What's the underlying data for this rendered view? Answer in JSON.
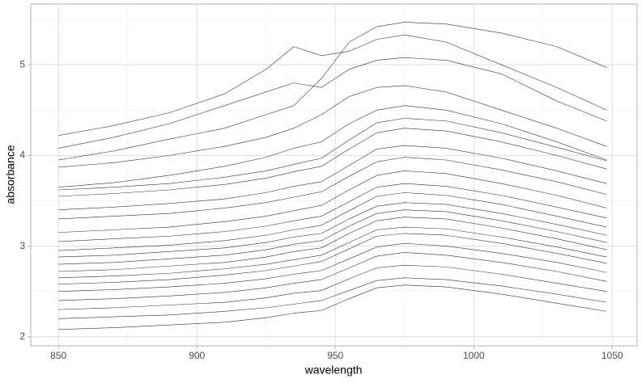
{
  "chart_data": {
    "type": "line",
    "xlabel": "wavelength",
    "ylabel": "absorbance",
    "x": [
      850,
      870,
      890,
      910,
      925,
      935,
      945,
      955,
      965,
      975,
      990,
      1010,
      1030,
      1048
    ],
    "color": "#333333",
    "xlim": [
      840,
      1059
    ],
    "ylim": [
      1.9,
      5.67
    ],
    "xticks": [
      850,
      900,
      950,
      1000,
      1050
    ],
    "yticks": [
      2,
      3,
      4,
      5
    ],
    "xminorticks": [
      875,
      925,
      975,
      1025
    ],
    "yminorticks": [
      2.5,
      3.5,
      4.5,
      5.5
    ],
    "grid": true,
    "series": [
      {
        "values": [
          4.22,
          4.33,
          4.47,
          4.68,
          4.95,
          5.2,
          5.1,
          5.15,
          5.28,
          5.33,
          5.25,
          5.0,
          4.75,
          4.5
        ]
      },
      {
        "values": [
          4.08,
          4.2,
          4.35,
          4.55,
          4.7,
          4.8,
          4.75,
          4.95,
          5.05,
          5.08,
          5.05,
          4.9,
          4.6,
          4.38
        ]
      },
      {
        "values": [
          3.95,
          4.05,
          4.18,
          4.3,
          4.45,
          4.55,
          4.85,
          5.25,
          5.42,
          5.47,
          5.45,
          5.35,
          5.2,
          4.97
        ]
      },
      {
        "values": [
          3.87,
          3.92,
          4.0,
          4.1,
          4.2,
          4.3,
          4.45,
          4.65,
          4.75,
          4.77,
          4.7,
          4.5,
          4.3,
          4.1
        ]
      },
      {
        "values": [
          3.65,
          3.7,
          3.78,
          3.88,
          3.98,
          4.08,
          4.15,
          4.35,
          4.5,
          4.55,
          4.5,
          4.35,
          4.15,
          3.95
        ]
      },
      {
        "values": [
          3.62,
          3.65,
          3.69,
          3.76,
          3.83,
          3.9,
          3.97,
          4.17,
          4.36,
          4.41,
          4.38,
          4.25,
          4.09,
          3.94
        ]
      },
      {
        "values": [
          3.55,
          3.58,
          3.62,
          3.68,
          3.75,
          3.82,
          3.88,
          4.07,
          4.25,
          4.3,
          4.27,
          4.15,
          4.0,
          3.85
        ]
      },
      {
        "values": [
          3.4,
          3.43,
          3.47,
          3.52,
          3.59,
          3.66,
          3.71,
          3.89,
          4.07,
          4.11,
          4.08,
          3.97,
          3.83,
          3.69
        ]
      },
      {
        "values": [
          3.3,
          3.33,
          3.36,
          3.42,
          3.48,
          3.54,
          3.6,
          3.77,
          3.93,
          3.98,
          3.95,
          3.84,
          3.71,
          3.57
        ]
      },
      {
        "values": [
          3.15,
          3.18,
          3.21,
          3.27,
          3.33,
          3.39,
          3.45,
          3.62,
          3.78,
          3.83,
          3.8,
          3.69,
          3.56,
          3.42
        ]
      },
      {
        "values": [
          3.05,
          3.08,
          3.11,
          3.16,
          3.22,
          3.28,
          3.33,
          3.49,
          3.65,
          3.69,
          3.66,
          3.56,
          3.43,
          3.31
        ]
      },
      {
        "values": [
          2.95,
          2.98,
          3.01,
          3.06,
          3.12,
          3.18,
          3.23,
          3.39,
          3.55,
          3.59,
          3.56,
          3.46,
          3.33,
          3.21
        ]
      },
      {
        "values": [
          2.88,
          2.9,
          2.94,
          2.98,
          3.04,
          3.1,
          3.14,
          3.3,
          3.44,
          3.48,
          3.46,
          3.36,
          3.24,
          3.12
        ]
      },
      {
        "values": [
          2.8,
          2.82,
          2.86,
          2.9,
          2.96,
          3.02,
          3.06,
          3.22,
          3.36,
          3.4,
          3.38,
          3.28,
          3.16,
          3.04
        ]
      },
      {
        "values": [
          2.72,
          2.74,
          2.78,
          2.82,
          2.88,
          2.94,
          2.98,
          3.14,
          3.28,
          3.32,
          3.3,
          3.2,
          3.08,
          2.96
        ]
      },
      {
        "values": [
          2.65,
          2.67,
          2.7,
          2.75,
          2.8,
          2.85,
          2.9,
          3.04,
          3.18,
          3.21,
          3.19,
          3.1,
          2.99,
          2.88
        ]
      },
      {
        "values": [
          2.58,
          2.6,
          2.63,
          2.68,
          2.73,
          2.78,
          2.83,
          2.97,
          3.11,
          3.14,
          3.12,
          3.03,
          2.92,
          2.81
        ]
      },
      {
        "values": [
          2.5,
          2.52,
          2.55,
          2.59,
          2.64,
          2.69,
          2.73,
          2.86,
          2.99,
          3.03,
          3.0,
          2.92,
          2.82,
          2.71
        ]
      },
      {
        "values": [
          2.4,
          2.42,
          2.45,
          2.49,
          2.54,
          2.59,
          2.63,
          2.76,
          2.89,
          2.93,
          2.9,
          2.82,
          2.72,
          2.61
        ]
      },
      {
        "values": [
          2.3,
          2.32,
          2.35,
          2.38,
          2.43,
          2.48,
          2.51,
          2.64,
          2.76,
          2.79,
          2.77,
          2.69,
          2.59,
          2.5
        ]
      },
      {
        "values": [
          2.2,
          2.22,
          2.24,
          2.28,
          2.32,
          2.36,
          2.4,
          2.51,
          2.62,
          2.65,
          2.63,
          2.56,
          2.47,
          2.38
        ]
      },
      {
        "values": [
          2.08,
          2.1,
          2.13,
          2.16,
          2.21,
          2.26,
          2.29,
          2.42,
          2.54,
          2.57,
          2.55,
          2.47,
          2.37,
          2.28
        ]
      }
    ]
  }
}
